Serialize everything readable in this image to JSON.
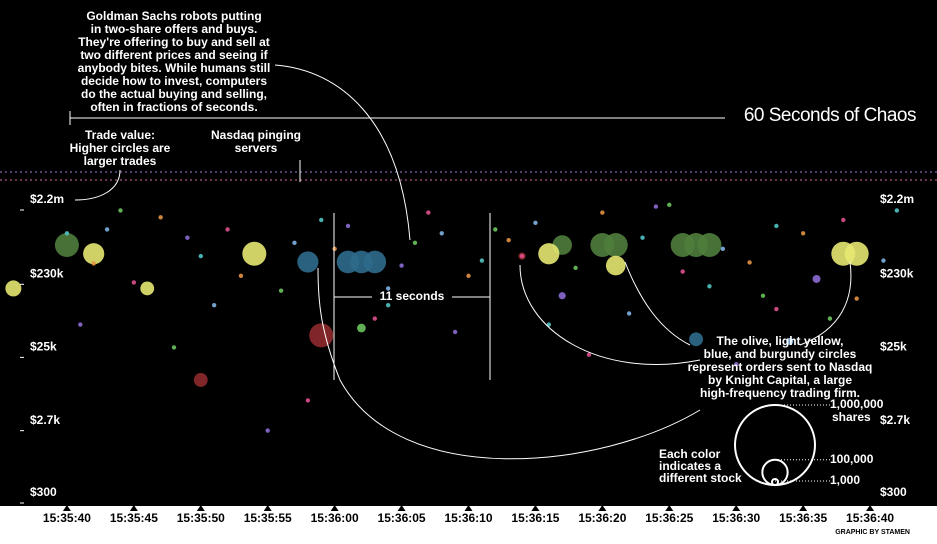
{
  "chart_data": {
    "type": "scatter",
    "title": "60 Seconds of Chaos",
    "log_y": true,
    "xlim": [
      "15:35:35",
      "15:36:45"
    ],
    "ylim": [
      300,
      2200000
    ],
    "xticks": [
      "15:35:40",
      "15:35:45",
      "15:35:50",
      "15:35:55",
      "15:36:00",
      "15:36:05",
      "15:36:10",
      "15:36:15",
      "15:36:20",
      "15:36:25",
      "15:36:30",
      "15:36:35",
      "15:36:40"
    ],
    "yticks": [
      {
        "value": 2200000,
        "label": "$2.2m"
      },
      {
        "value": 230000,
        "label": "$230k"
      },
      {
        "value": 25000,
        "label": "$25k"
      },
      {
        "value": 2700,
        "label": "$2.7k"
      },
      {
        "value": 300,
        "label": "$300"
      }
    ],
    "series": [
      {
        "color": "#4f7d3c",
        "x": [
          "15:35:40",
          "15:36:17",
          "15:36:20",
          "15:36:21",
          "15:36:26",
          "15:36:27",
          "15:36:28"
        ],
        "values": [
          560000,
          560000,
          560000,
          560000,
          560000,
          560000,
          560000
        ],
        "sizes": [
          90000,
          60000,
          90000,
          90000,
          90000,
          90000,
          90000
        ]
      },
      {
        "color": "#e6e872",
        "x": [
          "15:35:36",
          "15:35:42",
          "15:35:46",
          "15:35:54",
          "15:36:16",
          "15:36:21",
          "15:36:38",
          "15:36:39"
        ],
        "values": [
          150000,
          430000,
          150000,
          430000,
          430000,
          300000,
          430000,
          430000
        ],
        "sizes": [
          40000,
          70000,
          30000,
          90000,
          70000,
          60000,
          90000,
          90000
        ]
      },
      {
        "color": "#2d6c8c",
        "x": [
          "15:35:58",
          "15:36:01",
          "15:36:02",
          "15:36:03",
          "15:36:27"
        ],
        "values": [
          335000,
          335000,
          335000,
          335000,
          32000
        ],
        "sizes": [
          70000,
          80000,
          80000,
          80000,
          30000
        ]
      },
      {
        "color": "#8e2a2e",
        "x": [
          "15:35:59",
          "15:35:50",
          "15:36:14"
        ],
        "values": [
          36000,
          9300,
          400000
        ],
        "sizes": [
          90000,
          30000,
          8000
        ]
      },
      {
        "color": "#e0508f",
        "x": [
          "15:35:45",
          "15:35:52",
          "15:36:03",
          "15:36:07",
          "15:36:14",
          "15:36:19",
          "15:36:26",
          "15:36:33",
          "15:36:38",
          "15:35:58"
        ],
        "values": [
          180000,
          900000,
          60000,
          1500000,
          400000,
          20000,
          250000,
          80000,
          1200000,
          5000
        ],
        "sizes": [
          3000,
          3000,
          3000,
          3000,
          3000,
          3000,
          3000,
          3000,
          3000,
          3000
        ]
      },
      {
        "color": "#8c6bd2",
        "x": [
          "15:35:41",
          "15:35:49",
          "15:36:01",
          "15:36:05",
          "15:36:09",
          "15:36:17",
          "15:36:24",
          "15:36:30",
          "15:36:36",
          "15:35:55"
        ],
        "values": [
          50000,
          700000,
          1000000,
          300000,
          40000,
          120000,
          1800000,
          15000,
          200000,
          2000
        ],
        "sizes": [
          3000,
          3000,
          3000,
          3000,
          3000,
          8000,
          3000,
          3000,
          10000,
          3000
        ]
      },
      {
        "color": "#7fb3e3",
        "x": [
          "15:35:43",
          "15:35:51",
          "15:35:57",
          "15:36:04",
          "15:36:08",
          "15:36:15",
          "15:36:22",
          "15:36:29",
          "15:36:34",
          "15:36:41"
        ],
        "values": [
          900000,
          90000,
          600000,
          150000,
          800000,
          1100000,
          70000,
          500000,
          30000,
          350000
        ],
        "sizes": [
          3000,
          3000,
          3000,
          3000,
          3000,
          3000,
          3000,
          3000,
          8000,
          3000
        ]
      },
      {
        "color": "#6cc35f",
        "x": [
          "15:35:44",
          "15:35:48",
          "15:35:56",
          "15:36:02",
          "15:36:06",
          "15:36:12",
          "15:36:18",
          "15:36:25",
          "15:36:32",
          "15:36:37"
        ],
        "values": [
          1600000,
          25000,
          140000,
          45000,
          600000,
          900000,
          280000,
          1900000,
          120000,
          60000
        ],
        "sizes": [
          3000,
          3000,
          3000,
          12000,
          3000,
          3000,
          3000,
          3000,
          3000,
          3000
        ]
      },
      {
        "color": "#e39443",
        "x": [
          "15:35:42",
          "15:35:47",
          "15:35:53",
          "15:36:00",
          "15:36:10",
          "15:36:13",
          "15:36:20",
          "15:36:31",
          "15:36:35",
          "15:36:39"
        ],
        "values": [
          320000,
          1300000,
          220000,
          500000,
          220000,
          650000,
          1500000,
          330000,
          800000,
          110000
        ],
        "sizes": [
          3000,
          3000,
          3000,
          3000,
          3000,
          3000,
          3000,
          3000,
          3000,
          3000
        ]
      },
      {
        "color": "#52c2c2",
        "x": [
          "15:35:40",
          "15:35:50",
          "15:35:59",
          "15:36:04",
          "15:36:11",
          "15:36:16",
          "15:36:23",
          "15:36:28",
          "15:36:33",
          "15:36:42"
        ],
        "values": [
          800000,
          400000,
          1200000,
          90000,
          350000,
          50000,
          700000,
          160000,
          1000000,
          1600000
        ],
        "sizes": [
          3000,
          3000,
          3000,
          3000,
          3000,
          3000,
          3000,
          3000,
          3000,
          3000
        ]
      }
    ],
    "size_legend": [
      {
        "value": 1000000,
        "label": "1,000,000"
      },
      {
        "value": 100000,
        "label": "100,000"
      },
      {
        "value": 1000,
        "label": "1,000"
      }
    ],
    "size_legend_unit": "shares",
    "annotations": {
      "goldman": [
        "Goldman Sachs robots putting",
        "in two-share offers and buys.",
        "They're offering to buy and sell at",
        "two different prices and seeing if",
        "anybody bites. While humans still",
        "decide how to invest, computers",
        "do the actual buying and selling,",
        "often in fractions of seconds."
      ],
      "trade_value": [
        "Trade value:",
        "Higher circles are",
        "larger trades"
      ],
      "nasdaq": [
        "Nasdaq pinging",
        "servers"
      ],
      "eleven": "11 seconds",
      "knight": [
        "The    olive,    light yellow,",
        "blue, and    burgundy circles",
        "represent orders sent to Nasdaq",
        "by Knight Capital, a large",
        "high-frequency trading firm."
      ],
      "color": [
        "Each color",
        "indicates a",
        "different stock"
      ]
    },
    "credit": "GRAPHIC BY STAMEN"
  }
}
